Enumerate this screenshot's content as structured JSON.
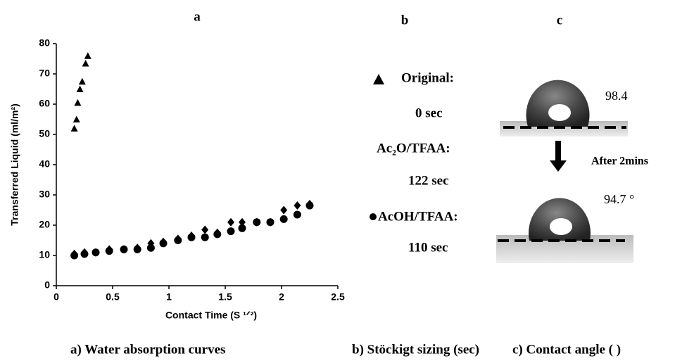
{
  "chart_data": {
    "type": "scatter",
    "title": "a",
    "xlabel": "Contact Time (S ¹ᐟ²)",
    "ylabel": "Transferred Liquid (ml/m²)",
    "xlim": [
      0,
      2.5
    ],
    "xticks": [
      0,
      0.5,
      1,
      1.5,
      2,
      2.5
    ],
    "ylim": [
      0,
      80
    ],
    "yticks": [
      0,
      10,
      20,
      30,
      40,
      50,
      60,
      70,
      80
    ],
    "series": [
      {
        "name": "Original:",
        "color": "#000000",
        "marker": "triangle",
        "x": [
          0.16,
          0.18,
          0.19,
          0.21,
          0.23,
          0.26,
          0.28
        ],
        "values": [
          52,
          55,
          60.5,
          65,
          67.5,
          73.5,
          76
        ]
      },
      {
        "name": "Ac₂O/TFAA:",
        "color": "#000000",
        "marker": "diamond",
        "x": [
          0.16,
          0.25,
          0.35,
          0.47,
          0.6,
          0.72,
          0.84,
          0.95,
          1.08,
          1.2,
          1.32,
          1.43,
          1.55,
          1.65,
          1.78,
          1.9,
          2.02,
          2.14,
          2.25
        ],
        "values": [
          10.5,
          11,
          11,
          12,
          12,
          12.5,
          14,
          14.5,
          15.5,
          16.5,
          18.5,
          17.5,
          21,
          21,
          21,
          21,
          25,
          26.5,
          27
        ]
      },
      {
        "name": "AcOH/TFAA:",
        "color": "#000000",
        "marker": "circle",
        "x": [
          0.16,
          0.25,
          0.35,
          0.47,
          0.6,
          0.72,
          0.84,
          0.95,
          1.08,
          1.2,
          1.32,
          1.43,
          1.55,
          1.65,
          1.78,
          1.9,
          2.02,
          2.14,
          2.25
        ],
        "values": [
          10,
          10.5,
          11,
          11.5,
          12,
          12,
          12.5,
          14,
          15,
          16,
          16,
          17,
          18,
          19,
          21,
          21,
          22,
          23.5,
          26.5
        ]
      }
    ]
  },
  "panel_b": {
    "title": "b",
    "times": [
      "0 sec",
      "122 sec",
      "110 sec"
    ]
  },
  "panel_c": {
    "title": "c",
    "angle_before": "98.4",
    "arrow_label": "After 2mins",
    "angle_after": "94.7 °"
  },
  "captions": [
    "a) Water absorption curves",
    "b) Stöckigt sizing (sec)",
    "c) Contact angle (   )"
  ]
}
